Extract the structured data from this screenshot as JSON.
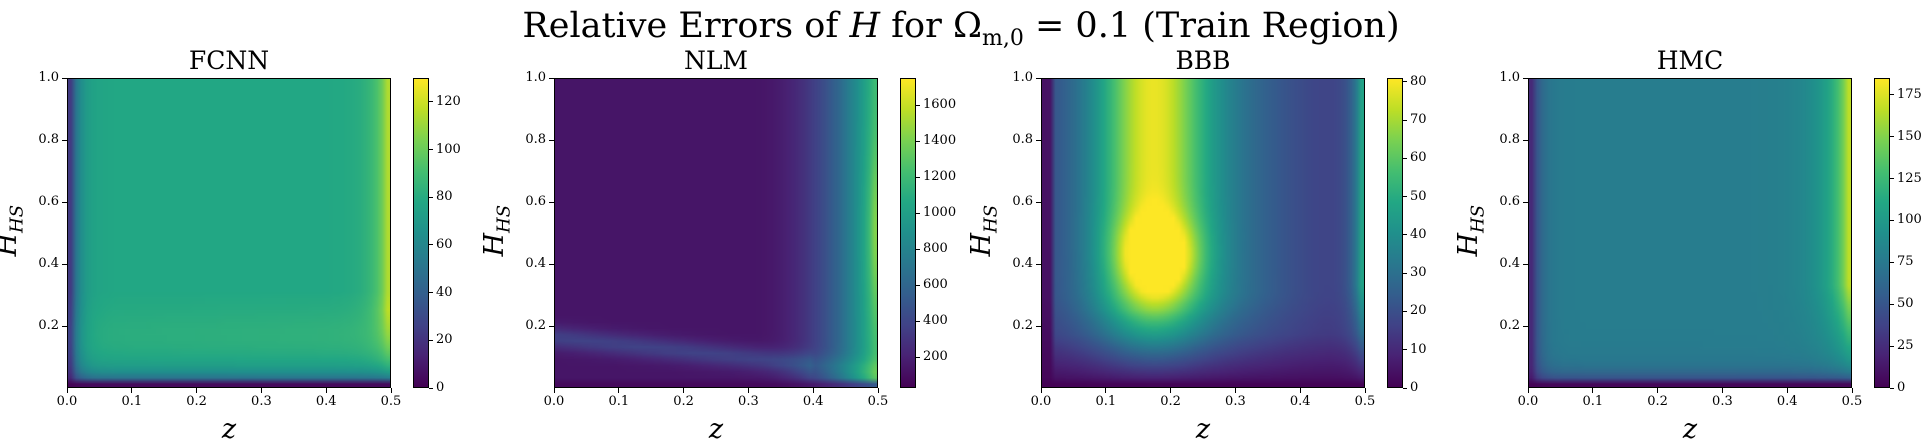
{
  "title": "Relative Errors of H for Ω_{m,0} = 0.1 (Train Region)",
  "title_parts": {
    "pre": "Relative Errors of ",
    "var": "H",
    "mid": " for Ω",
    "sub": "m,0",
    "post": " = 0.1 (Train Region)"
  },
  "colormap": "viridis",
  "chart_data": [
    {
      "type": "heatmap",
      "title": "FCNN",
      "xlabel": "z",
      "ylabel": "H_HS",
      "ylabel_parts": {
        "main": "H",
        "sub": "HS"
      },
      "xlim": [
        0,
        0.5
      ],
      "ylim": [
        0,
        1
      ],
      "xticks": [
        "0.0",
        "0.1",
        "0.2",
        "0.3",
        "0.4",
        "0.5"
      ],
      "yticks": [
        "0.2",
        "0.4",
        "0.6",
        "0.8",
        "1.0"
      ],
      "colorbar": {
        "min": 0,
        "max": 130,
        "ticks": [
          0,
          20,
          40,
          60,
          80,
          100,
          120
        ]
      },
      "field": "fcnn"
    },
    {
      "type": "heatmap",
      "title": "NLM",
      "xlabel": "z",
      "ylabel": "H_HS",
      "ylabel_parts": {
        "main": "H",
        "sub": "HS"
      },
      "xlim": [
        0,
        0.5
      ],
      "ylim": [
        0,
        1
      ],
      "xticks": [
        "0.0",
        "0.1",
        "0.2",
        "0.3",
        "0.4",
        "0.5"
      ],
      "yticks": [
        "0.2",
        "0.4",
        "0.6",
        "0.8",
        "1.0"
      ],
      "colorbar": {
        "min": 30,
        "max": 1750,
        "ticks": [
          200,
          400,
          600,
          800,
          1000,
          1200,
          1400,
          1600
        ]
      },
      "field": "nlm"
    },
    {
      "type": "heatmap",
      "title": "BBB",
      "xlabel": "z",
      "ylabel": "H_HS",
      "ylabel_parts": {
        "main": "H",
        "sub": "HS"
      },
      "xlim": [
        0,
        0.5
      ],
      "ylim": [
        0,
        1
      ],
      "xticks": [
        "0.0",
        "0.1",
        "0.2",
        "0.3",
        "0.4",
        "0.5"
      ],
      "yticks": [
        "0.2",
        "0.4",
        "0.6",
        "0.8",
        "1.0"
      ],
      "colorbar": {
        "min": 0,
        "max": 81,
        "ticks": [
          0,
          10,
          20,
          30,
          40,
          50,
          60,
          70,
          80
        ]
      },
      "field": "bbb"
    },
    {
      "type": "heatmap",
      "title": "HMC",
      "xlabel": "z",
      "ylabel": "H_HS",
      "ylabel_parts": {
        "main": "H",
        "sub": "HS"
      },
      "xlim": [
        0,
        0.5
      ],
      "ylim": [
        0,
        1
      ],
      "xticks": [
        "0.0",
        "0.1",
        "0.2",
        "0.3",
        "0.4",
        "0.5"
      ],
      "yticks": [
        "0.2",
        "0.4",
        "0.6",
        "0.8",
        "1.0"
      ],
      "colorbar": {
        "min": 0,
        "max": 185,
        "ticks": [
          0,
          25,
          50,
          75,
          100,
          125,
          150,
          175
        ]
      },
      "field": "hmc"
    }
  ]
}
